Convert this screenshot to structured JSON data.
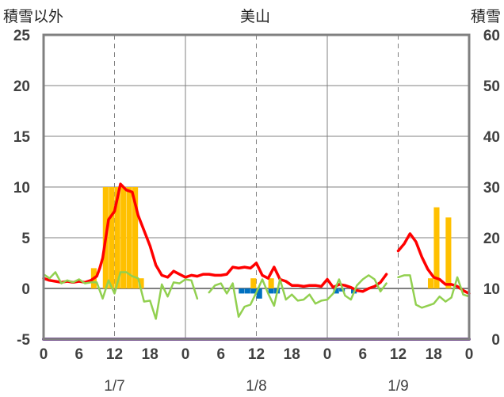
{
  "chart_data": {
    "type": "bar+line",
    "title": "美山",
    "ylabel_left": "積雪以外",
    "ylabel_right": "積雪",
    "ylim_left": [
      -5,
      25
    ],
    "yticks_left": [
      "-5",
      "0",
      "5",
      "10",
      "15",
      "20",
      "25"
    ],
    "ylim_right": [
      0,
      60
    ],
    "yticks_right": [
      "0",
      "10",
      "20",
      "30",
      "40",
      "50",
      "60"
    ],
    "xlim_hours": [
      0,
      72
    ],
    "xtick_labels": [
      "0",
      "6",
      "12",
      "18",
      "0",
      "6",
      "12",
      "18",
      "0",
      "6",
      "12",
      "18",
      "0"
    ],
    "date_labels": [
      {
        "hour": 12,
        "label": "1/7"
      },
      {
        "hour": 36,
        "label": "1/8"
      },
      {
        "hour": 60,
        "label": "1/9"
      }
    ],
    "colors": {
      "precip_bar": "#ffc000",
      "snowfall_bar": "#0070c0",
      "temperature_line": "#ff0000",
      "wind_line": "#92d050",
      "snow_depth_line": "#7030a0",
      "axis": "#808080",
      "grid": "#808080"
    },
    "series": [
      {
        "type": "bar",
        "axis": "left",
        "hours": [
          8.5,
          10.5,
          11.5,
          12.5,
          13.5,
          14.5,
          15.5,
          16.5,
          35.5,
          38.5,
          65.5,
          66.5,
          68.5
        ],
        "values": [
          2,
          10,
          10,
          10,
          10,
          10,
          10,
          1,
          1,
          1,
          1,
          8,
          7
        ]
      },
      {
        "type": "bar",
        "axis": "left",
        "hours": [
          33.5,
          34.5,
          35.5,
          36.5,
          38.5,
          39.5,
          49.5,
          50.5,
          52.5
        ],
        "values": [
          -0.5,
          -0.5,
          -0.5,
          -1,
          -0.5,
          -0.5,
          -0.5,
          -0.3,
          -0.5
        ]
      },
      {
        "type": "line",
        "axis": "left",
        "hours": [
          0,
          1,
          2,
          3,
          4,
          5,
          6,
          7,
          8,
          9,
          9.5,
          10,
          11,
          12,
          13,
          14,
          15,
          16,
          17,
          18,
          19,
          20,
          21,
          22,
          23,
          24,
          25,
          26,
          27,
          28,
          29,
          30,
          31,
          32,
          33,
          34,
          35,
          36,
          37,
          38,
          39,
          40,
          41,
          42,
          43,
          44,
          45,
          46,
          47,
          48,
          49,
          50,
          51,
          52,
          53,
          54,
          55,
          56,
          57,
          58
        ],
        "values": [
          1.0,
          0.8,
          0.7,
          0.6,
          0.7,
          0.6,
          0.7,
          0.6,
          0.8,
          1.2,
          2.0,
          3.0,
          6.8,
          7.6,
          10.3,
          9.7,
          9.5,
          7.2,
          5.7,
          4.2,
          2.3,
          1.3,
          1.1,
          1.7,
          1.4,
          1.1,
          1.3,
          1.2,
          1.4,
          1.4,
          1.3,
          1.3,
          1.4,
          2.1,
          2.0,
          2.1,
          2.0,
          2.5,
          1.3,
          1.0,
          2.1,
          0.9,
          0.7,
          0.3,
          0.3,
          0.2,
          0.3,
          0.3,
          0.2,
          0.9,
          0.1,
          0.4,
          0.3,
          0.1,
          -0.2,
          -0.3,
          0.0,
          0.2,
          0.6,
          1.4
        ]
      },
      {
        "type": "line",
        "axis": "left",
        "hours": [
          60,
          61,
          62,
          63,
          64,
          65,
          66,
          67,
          68,
          69,
          70,
          71,
          72
        ],
        "values": [
          3.7,
          4.4,
          5.4,
          4.6,
          3.1,
          1.9,
          1.1,
          0.9,
          0.4,
          0.4,
          0.2,
          -0.2,
          -0.5
        ]
      },
      {
        "type": "line",
        "axis": "left",
        "hours": [
          0,
          1,
          2,
          3,
          4,
          5,
          6,
          7,
          8,
          9,
          10,
          11,
          12,
          13,
          14,
          15,
          16,
          17,
          18,
          19,
          20,
          21,
          22,
          23,
          24,
          25,
          26
        ],
        "values": [
          1.4,
          1.0,
          1.6,
          0.5,
          0.8,
          0.6,
          0.9,
          0.5,
          0.6,
          0.6,
          -1.0,
          0.8,
          -0.5,
          1.6,
          1.6,
          1.2,
          1.0,
          -1.3,
          -1.2,
          -3.0,
          0.4,
          -0.8,
          0.6,
          0.5,
          0.9,
          0.8,
          -1.0
        ]
      },
      {
        "type": "line",
        "axis": "left",
        "hours": [
          28,
          29,
          30,
          31,
          32,
          33,
          34,
          35,
          36,
          37,
          38,
          39,
          40,
          41,
          42,
          43,
          44,
          45,
          46,
          47,
          48,
          49,
          50,
          51,
          52,
          53,
          54,
          55,
          56,
          57,
          58
        ],
        "values": [
          -0.4,
          0.3,
          0.5,
          -0.5,
          0.5,
          -2.8,
          -1.8,
          -1.6,
          -0.4,
          0.9,
          -0.5,
          -1.7,
          0.9,
          -1.1,
          -0.6,
          -1.2,
          -1.1,
          -0.6,
          -1.5,
          -1.2,
          -1.1,
          -0.5,
          0.9,
          -0.7,
          -1.1,
          0.3,
          0.9,
          1.3,
          0.9,
          -0.3,
          0.5
        ]
      },
      {
        "type": "line",
        "axis": "left",
        "hours": [
          60,
          61,
          62,
          63,
          64,
          65,
          66,
          67,
          68,
          69,
          70,
          71,
          72
        ],
        "values": [
          1.1,
          1.3,
          1.3,
          -1.6,
          -1.9,
          -1.7,
          -1.5,
          -0.8,
          -1.3,
          -0.9,
          1.1,
          -0.6,
          -0.8
        ]
      },
      {
        "type": "line",
        "axis": "right",
        "hours": [
          0,
          72
        ],
        "values": [
          0,
          0
        ]
      }
    ]
  }
}
